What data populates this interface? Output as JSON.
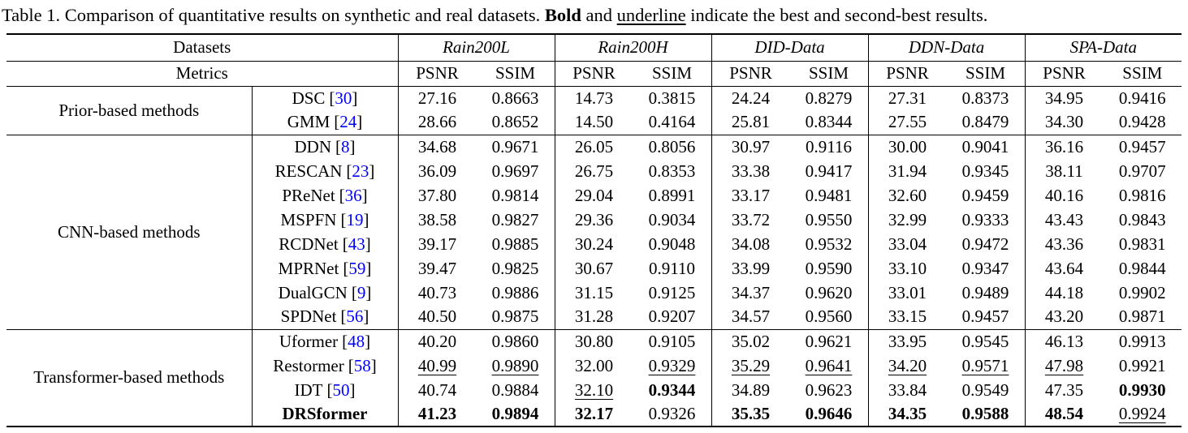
{
  "caption": {
    "part1": "Table 1. Comparison of quantitative results on synthetic and real datasets. ",
    "bold_word": "Bold",
    "part2": " and ",
    "underline_word": "underline",
    "part3": " indicate the best and second-best results."
  },
  "table": {
    "datasets_label": "Datasets",
    "metrics_label": "Metrics",
    "cite_open": "[",
    "cite_close": "]",
    "citation_color": "#0000ff",
    "datasets": [
      "Rain200L",
      "Rain200H",
      "DID-Data",
      "DDN-Data",
      "SPA-Data"
    ],
    "metrics": [
      "PSNR",
      "SSIM"
    ],
    "groups": [
      {
        "label": "Prior-based methods",
        "rows": [
          {
            "method": "DSC",
            "ref": "30",
            "bold": false,
            "values": [
              "27.16",
              "0.8663",
              "14.73",
              "0.3815",
              "24.24",
              "0.8279",
              "27.31",
              "0.8373",
              "34.95",
              "0.9416"
            ],
            "styles": [
              "",
              "",
              "",
              "",
              "",
              "",
              "",
              "",
              "",
              ""
            ]
          },
          {
            "method": "GMM",
            "ref": "24",
            "bold": false,
            "values": [
              "28.66",
              "0.8652",
              "14.50",
              "0.4164",
              "25.81",
              "0.8344",
              "27.55",
              "0.8479",
              "34.30",
              "0.9428"
            ],
            "styles": [
              "",
              "",
              "",
              "",
              "",
              "",
              "",
              "",
              "",
              ""
            ]
          }
        ]
      },
      {
        "label": "CNN-based methods",
        "rows": [
          {
            "method": "DDN",
            "ref": "8",
            "bold": false,
            "values": [
              "34.68",
              "0.9671",
              "26.05",
              "0.8056",
              "30.97",
              "0.9116",
              "30.00",
              "0.9041",
              "36.16",
              "0.9457"
            ],
            "styles": [
              "",
              "",
              "",
              "",
              "",
              "",
              "",
              "",
              "",
              ""
            ]
          },
          {
            "method": "RESCAN",
            "ref": "23",
            "bold": false,
            "values": [
              "36.09",
              "0.9697",
              "26.75",
              "0.8353",
              "33.38",
              "0.9417",
              "31.94",
              "0.9345",
              "38.11",
              "0.9707"
            ],
            "styles": [
              "",
              "",
              "",
              "",
              "",
              "",
              "",
              "",
              "",
              ""
            ]
          },
          {
            "method": "PReNet",
            "ref": "36",
            "bold": false,
            "values": [
              "37.80",
              "0.9814",
              "29.04",
              "0.8991",
              "33.17",
              "0.9481",
              "32.60",
              "0.9459",
              "40.16",
              "0.9816"
            ],
            "styles": [
              "",
              "",
              "",
              "",
              "",
              "",
              "",
              "",
              "",
              ""
            ]
          },
          {
            "method": "MSPFN",
            "ref": "19",
            "bold": false,
            "values": [
              "38.58",
              "0.9827",
              "29.36",
              "0.9034",
              "33.72",
              "0.9550",
              "32.99",
              "0.9333",
              "43.43",
              "0.9843"
            ],
            "styles": [
              "",
              "",
              "",
              "",
              "",
              "",
              "",
              "",
              "",
              ""
            ]
          },
          {
            "method": "RCDNet",
            "ref": "43",
            "bold": false,
            "values": [
              "39.17",
              "0.9885",
              "30.24",
              "0.9048",
              "34.08",
              "0.9532",
              "33.04",
              "0.9472",
              "43.36",
              "0.9831"
            ],
            "styles": [
              "",
              "",
              "",
              "",
              "",
              "",
              "",
              "",
              "",
              ""
            ]
          },
          {
            "method": "MPRNet",
            "ref": "59",
            "bold": false,
            "values": [
              "39.47",
              "0.9825",
              "30.67",
              "0.9110",
              "33.99",
              "0.9590",
              "33.10",
              "0.9347",
              "43.64",
              "0.9844"
            ],
            "styles": [
              "",
              "",
              "",
              "",
              "",
              "",
              "",
              "",
              "",
              ""
            ]
          },
          {
            "method": "DualGCN",
            "ref": "9",
            "bold": false,
            "values": [
              "40.73",
              "0.9886",
              "31.15",
              "0.9125",
              "34.37",
              "0.9620",
              "33.01",
              "0.9489",
              "44.18",
              "0.9902"
            ],
            "styles": [
              "",
              "",
              "",
              "",
              "",
              "",
              "",
              "",
              "",
              ""
            ]
          },
          {
            "method": "SPDNet",
            "ref": "56",
            "bold": false,
            "values": [
              "40.50",
              "0.9875",
              "31.28",
              "0.9207",
              "34.57",
              "0.9560",
              "33.15",
              "0.9457",
              "43.20",
              "0.9871"
            ],
            "styles": [
              "",
              "",
              "",
              "",
              "",
              "",
              "",
              "",
              "",
              ""
            ]
          }
        ]
      },
      {
        "label": "Transformer-based methods",
        "rows": [
          {
            "method": "Uformer",
            "ref": "48",
            "bold": false,
            "values": [
              "40.20",
              "0.9860",
              "30.80",
              "0.9105",
              "35.02",
              "0.9621",
              "33.95",
              "0.9545",
              "46.13",
              "0.9913"
            ],
            "styles": [
              "",
              "",
              "",
              "",
              "",
              "",
              "",
              "",
              "",
              ""
            ]
          },
          {
            "method": "Restormer",
            "ref": "58",
            "bold": false,
            "values": [
              "40.99",
              "0.9890",
              "32.00",
              "0.9329",
              "35.29",
              "0.9641",
              "34.20",
              "0.9571",
              "47.98",
              "0.9921"
            ],
            "styles": [
              "u",
              "u",
              "",
              "u",
              "u",
              "u",
              "u",
              "u",
              "u",
              ""
            ]
          },
          {
            "method": "IDT",
            "ref": "50",
            "bold": false,
            "values": [
              "40.74",
              "0.9884",
              "32.10",
              "0.9344",
              "34.89",
              "0.9623",
              "33.84",
              "0.9549",
              "47.35",
              "0.9930"
            ],
            "styles": [
              "",
              "",
              "u",
              "b",
              "",
              "",
              "",
              "",
              "",
              "b"
            ]
          },
          {
            "method": "DRSformer",
            "ref": null,
            "bold": true,
            "values": [
              "41.23",
              "0.9894",
              "32.17",
              "0.9326",
              "35.35",
              "0.9646",
              "34.35",
              "0.9588",
              "48.54",
              "0.9924"
            ],
            "styles": [
              "b",
              "b",
              "b",
              "",
              "b",
              "b",
              "b",
              "b",
              "b",
              "u"
            ]
          }
        ]
      }
    ]
  }
}
